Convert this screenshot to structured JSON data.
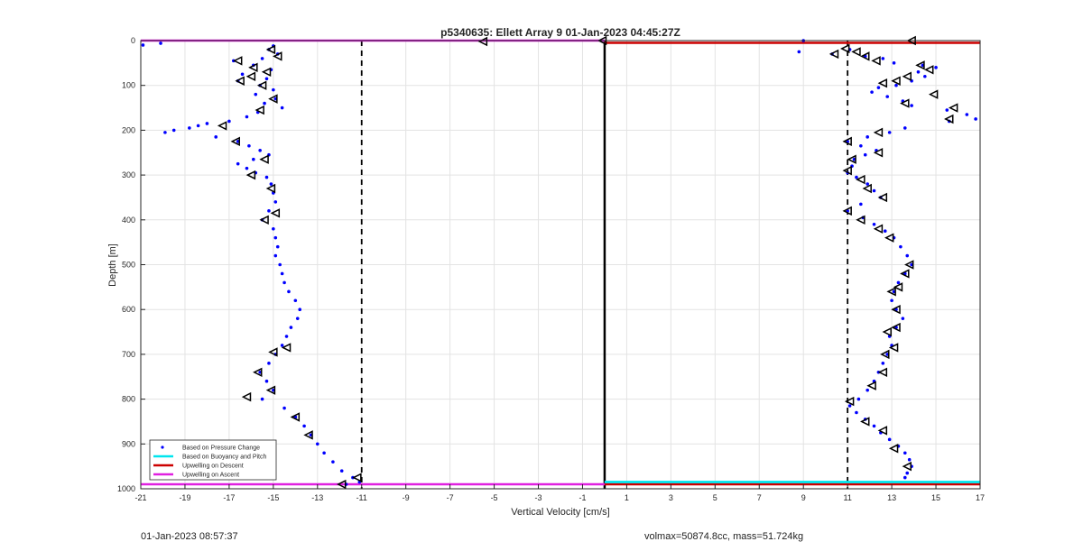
{
  "chart_data": {
    "type": "scatter",
    "title": "p5340635: Ellett Array 9 01-Jan-2023 04:45:27Z",
    "xlabel": "Vertical Velocity [cm/s]",
    "ylabel": "Depth [m]",
    "xlim": [
      -21,
      17
    ],
    "ylim": [
      0,
      1000
    ],
    "y_reversed": true,
    "grid": true,
    "xticks": [
      -21,
      -19,
      -17,
      -15,
      -13,
      -11,
      -9,
      -7,
      -5,
      -3,
      -1,
      1,
      3,
      5,
      7,
      9,
      11,
      13,
      15,
      17
    ],
    "yticks": [
      0,
      100,
      200,
      300,
      400,
      500,
      600,
      700,
      800,
      900,
      1000
    ],
    "legend_position": "bottom-left",
    "legend": [
      {
        "label": "Based on Pressure Change",
        "color": "#0000ff",
        "marker": "dot"
      },
      {
        "label": "Based on Buoyancy and Pitch",
        "color": "#00e5ee",
        "marker": "line"
      },
      {
        "label": "Upwelling on Descent",
        "color": "#cc0000",
        "marker": "line"
      },
      {
        "label": "Upwelling on Ascent",
        "color": "#e020e0",
        "marker": "line"
      }
    ],
    "series": [
      {
        "name": "Based on Pressure Change",
        "color": "#0000ff",
        "points": [
          [
            -20.9,
            10
          ],
          [
            -20.1,
            6
          ],
          [
            -15.0,
            12
          ],
          [
            -15.2,
            20
          ],
          [
            -14.8,
            30
          ],
          [
            -15.5,
            40
          ],
          [
            -16.8,
            45
          ],
          [
            -15.9,
            55
          ],
          [
            -15.1,
            65
          ],
          [
            -16.4,
            75
          ],
          [
            -15.3,
            85
          ],
          [
            -16.6,
            90
          ],
          [
            -15.6,
            100
          ],
          [
            -15.0,
            110
          ],
          [
            -15.8,
            120
          ],
          [
            -14.9,
            130
          ],
          [
            -15.4,
            140
          ],
          [
            -14.6,
            150
          ],
          [
            -15.7,
            160
          ],
          [
            -16.2,
            170
          ],
          [
            -17.0,
            180
          ],
          [
            -18.0,
            185
          ],
          [
            -18.4,
            190
          ],
          [
            -18.8,
            195
          ],
          [
            -19.5,
            200
          ],
          [
            -19.9,
            205
          ],
          [
            -17.6,
            215
          ],
          [
            -16.6,
            225
          ],
          [
            -16.1,
            235
          ],
          [
            -15.6,
            245
          ],
          [
            -15.2,
            255
          ],
          [
            -15.9,
            265
          ],
          [
            -16.6,
            275
          ],
          [
            -16.2,
            285
          ],
          [
            -15.8,
            295
          ],
          [
            -15.3,
            305
          ],
          [
            -15.1,
            320
          ],
          [
            -15.0,
            340
          ],
          [
            -14.9,
            360
          ],
          [
            -15.2,
            380
          ],
          [
            -15.5,
            400
          ],
          [
            -15.0,
            420
          ],
          [
            -14.9,
            440
          ],
          [
            -14.8,
            460
          ],
          [
            -14.9,
            480
          ],
          [
            -14.7,
            500
          ],
          [
            -14.6,
            520
          ],
          [
            -14.5,
            540
          ],
          [
            -14.3,
            560
          ],
          [
            -14.0,
            580
          ],
          [
            -13.8,
            600
          ],
          [
            -13.9,
            620
          ],
          [
            -14.2,
            640
          ],
          [
            -14.4,
            660
          ],
          [
            -14.6,
            680
          ],
          [
            -14.9,
            700
          ],
          [
            -15.2,
            720
          ],
          [
            -15.6,
            740
          ],
          [
            -15.3,
            760
          ],
          [
            -15.0,
            780
          ],
          [
            -15.5,
            800
          ],
          [
            -14.5,
            820
          ],
          [
            -14.0,
            840
          ],
          [
            -13.6,
            860
          ],
          [
            -13.3,
            880
          ],
          [
            -13.0,
            900
          ],
          [
            -12.7,
            920
          ],
          [
            -12.3,
            940
          ],
          [
            -11.9,
            960
          ],
          [
            -11.4,
            975
          ],
          [
            -11.1,
            985
          ],
          [
            -11.7,
            990
          ],
          [
            9.0,
            0
          ],
          [
            8.8,
            25
          ],
          [
            10.3,
            30
          ],
          [
            11.1,
            20
          ],
          [
            11.8,
            35
          ],
          [
            12.6,
            40
          ],
          [
            13.1,
            50
          ],
          [
            14.4,
            55
          ],
          [
            15.0,
            60
          ],
          [
            14.2,
            70
          ],
          [
            14.5,
            80
          ],
          [
            13.9,
            90
          ],
          [
            13.2,
            100
          ],
          [
            12.4,
            105
          ],
          [
            12.1,
            115
          ],
          [
            12.8,
            125
          ],
          [
            13.5,
            135
          ],
          [
            13.9,
            145
          ],
          [
            15.5,
            155
          ],
          [
            16.4,
            165
          ],
          [
            16.8,
            175
          ],
          [
            15.6,
            180
          ],
          [
            13.6,
            195
          ],
          [
            12.9,
            205
          ],
          [
            11.9,
            215
          ],
          [
            11.0,
            225
          ],
          [
            11.6,
            235
          ],
          [
            12.3,
            245
          ],
          [
            11.8,
            255
          ],
          [
            11.3,
            265
          ],
          [
            11.2,
            280
          ],
          [
            11.0,
            295
          ],
          [
            11.4,
            305
          ],
          [
            11.9,
            320
          ],
          [
            12.2,
            335
          ],
          [
            12.5,
            350
          ],
          [
            11.6,
            365
          ],
          [
            11.0,
            380
          ],
          [
            11.7,
            395
          ],
          [
            12.2,
            410
          ],
          [
            12.7,
            425
          ],
          [
            13.1,
            440
          ],
          [
            13.4,
            460
          ],
          [
            13.7,
            480
          ],
          [
            13.9,
            500
          ],
          [
            13.6,
            520
          ],
          [
            13.3,
            540
          ],
          [
            13.1,
            560
          ],
          [
            13.0,
            580
          ],
          [
            13.2,
            600
          ],
          [
            13.5,
            620
          ],
          [
            13.2,
            640
          ],
          [
            12.9,
            660
          ],
          [
            13.0,
            680
          ],
          [
            12.8,
            700
          ],
          [
            12.6,
            720
          ],
          [
            12.4,
            740
          ],
          [
            12.2,
            760
          ],
          [
            11.9,
            780
          ],
          [
            11.5,
            800
          ],
          [
            11.1,
            815
          ],
          [
            11.4,
            830
          ],
          [
            11.8,
            845
          ],
          [
            12.2,
            860
          ],
          [
            12.5,
            875
          ],
          [
            12.9,
            890
          ],
          [
            13.3,
            905
          ],
          [
            13.6,
            920
          ],
          [
            13.8,
            935
          ],
          [
            13.9,
            950
          ],
          [
            13.7,
            965
          ],
          [
            13.6,
            975
          ]
        ]
      },
      {
        "name": "Based on Buoyancy and Pitch",
        "color": "#000000",
        "points": [
          [
            -15.1,
            20
          ],
          [
            -14.8,
            35
          ],
          [
            -16.6,
            45
          ],
          [
            -15.9,
            60
          ],
          [
            -15.3,
            70
          ],
          [
            -16.0,
            80
          ],
          [
            -16.5,
            90
          ],
          [
            -15.5,
            100
          ],
          [
            -15.0,
            130
          ],
          [
            -15.6,
            155
          ],
          [
            -17.3,
            190
          ],
          [
            -16.7,
            225
          ],
          [
            -15.4,
            265
          ],
          [
            -16.0,
            300
          ],
          [
            -15.1,
            330
          ],
          [
            -14.9,
            385
          ],
          [
            -15.4,
            400
          ],
          [
            -14.4,
            685
          ],
          [
            -15.0,
            695
          ],
          [
            -15.7,
            740
          ],
          [
            -15.1,
            780
          ],
          [
            -16.2,
            795
          ],
          [
            -14.0,
            840
          ],
          [
            -13.4,
            880
          ],
          [
            -11.2,
            975
          ],
          [
            -11.9,
            990
          ],
          [
            -0.1,
            0
          ],
          [
            -5.5,
            2
          ],
          [
            10.4,
            30
          ],
          [
            10.9,
            18
          ],
          [
            11.4,
            25
          ],
          [
            11.8,
            35
          ],
          [
            12.3,
            45
          ],
          [
            13.9,
            0
          ],
          [
            14.3,
            55
          ],
          [
            14.7,
            65
          ],
          [
            13.7,
            80
          ],
          [
            13.2,
            90
          ],
          [
            12.6,
            95
          ],
          [
            14.9,
            120
          ],
          [
            13.6,
            140
          ],
          [
            15.8,
            150
          ],
          [
            15.6,
            175
          ],
          [
            12.4,
            205
          ],
          [
            11.0,
            225
          ],
          [
            12.4,
            250
          ],
          [
            11.2,
            265
          ],
          [
            11.0,
            290
          ],
          [
            11.6,
            310
          ],
          [
            11.9,
            330
          ],
          [
            12.6,
            350
          ],
          [
            11.0,
            380
          ],
          [
            11.6,
            400
          ],
          [
            12.4,
            420
          ],
          [
            12.9,
            440
          ],
          [
            13.8,
            500
          ],
          [
            13.6,
            520
          ],
          [
            13.3,
            550
          ],
          [
            13.0,
            560
          ],
          [
            13.2,
            600
          ],
          [
            13.2,
            640
          ],
          [
            12.8,
            650
          ],
          [
            13.1,
            685
          ],
          [
            12.7,
            700
          ],
          [
            12.6,
            740
          ],
          [
            12.1,
            770
          ],
          [
            11.1,
            805
          ],
          [
            11.8,
            850
          ],
          [
            12.6,
            870
          ],
          [
            13.7,
            950
          ],
          [
            13.1,
            910
          ]
        ]
      }
    ],
    "reference_lines": [
      {
        "name": "mean descent velocity",
        "x": -11,
        "style": "dashed",
        "color": "#000000"
      },
      {
        "name": "mean ascent velocity",
        "x": 11,
        "style": "dashed",
        "color": "#000000"
      },
      {
        "name": "zero",
        "x": 0,
        "style": "solid",
        "color": "#000000"
      }
    ],
    "upwelling_lines": [
      {
        "name": "Upwelling on Ascent",
        "color": "#e020e0",
        "x1": -21,
        "x2": 0,
        "depth_top": 0,
        "depth_bottom": 990
      },
      {
        "name": "Upwelling on Descent",
        "color": "#cc0000",
        "x1": 0,
        "x2": 17,
        "depth_top": 5,
        "depth_bottom": 990
      },
      {
        "name": "Based on Buoyancy and Pitch",
        "color": "#00e5ee",
        "x1": 0,
        "x2": 17,
        "depth_top": 985,
        "depth_bottom": 985
      }
    ]
  },
  "footer": {
    "left": "01-Jan-2023 08:57:37",
    "right": "volmax=50874.8cc, mass=51.724kg"
  }
}
